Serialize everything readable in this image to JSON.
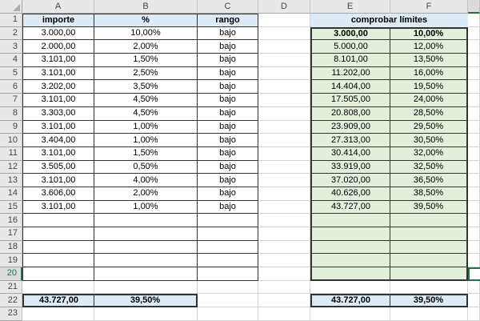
{
  "app": {
    "kind": "spreadsheet-grid"
  },
  "columns": [
    "A",
    "B",
    "C",
    "D",
    "E",
    "F"
  ],
  "row_count": 23,
  "selection": {
    "active_cell": "G20",
    "selected_row_header": "20"
  },
  "colors": {
    "header_fill_blue": "#ddebf7",
    "limits_fill_green": "#e2efda",
    "totals_fill_blue": "#ddebf7",
    "accent_green": "#217346",
    "table_border": "#333333",
    "gridline": "#d4d4d4"
  },
  "table_left": {
    "headers": [
      "importe",
      "%",
      "rango"
    ],
    "rows": [
      [
        "3.000,00",
        "10,00%",
        "bajo"
      ],
      [
        "2.000,00",
        "2,00%",
        "bajo"
      ],
      [
        "3.101,00",
        "1,50%",
        "bajo"
      ],
      [
        "3.101,00",
        "2,50%",
        "bajo"
      ],
      [
        "3.202,00",
        "3,50%",
        "bajo"
      ],
      [
        "3.101,00",
        "4,50%",
        "bajo"
      ],
      [
        "3.303,00",
        "4,50%",
        "bajo"
      ],
      [
        "3.101,00",
        "1,00%",
        "bajo"
      ],
      [
        "3.404,00",
        "1,00%",
        "bajo"
      ],
      [
        "3.101,00",
        "1,50%",
        "bajo"
      ],
      [
        "3.505,00",
        "0,50%",
        "bajo"
      ],
      [
        "3.101,00",
        "4,00%",
        "bajo"
      ],
      [
        "3.606,00",
        "2,00%",
        "bajo"
      ],
      [
        "3.101,00",
        "1,00%",
        "bajo"
      ],
      [
        "",
        "",
        ""
      ],
      [
        "",
        "",
        ""
      ],
      [
        "",
        "",
        ""
      ],
      [
        "",
        "",
        ""
      ],
      [
        "",
        "",
        ""
      ]
    ]
  },
  "table_right": {
    "title": "comprobar límites",
    "rows": [
      [
        "3.000,00",
        "10,00%"
      ],
      [
        "5.000,00",
        "12,00%"
      ],
      [
        "8.101,00",
        "13,50%"
      ],
      [
        "11.202,00",
        "16,00%"
      ],
      [
        "14.404,00",
        "19,50%"
      ],
      [
        "17.505,00",
        "24,00%"
      ],
      [
        "20.808,00",
        "28,50%"
      ],
      [
        "23.909,00",
        "29,50%"
      ],
      [
        "27.313,00",
        "30,50%"
      ],
      [
        "30.414,00",
        "32,00%"
      ],
      [
        "33.919,00",
        "32,50%"
      ],
      [
        "37.020,00",
        "36,50%"
      ],
      [
        "40.626,00",
        "38,50%"
      ],
      [
        "43.727,00",
        "39,50%"
      ],
      [
        "",
        ""
      ],
      [
        "",
        ""
      ],
      [
        "",
        ""
      ],
      [
        "",
        ""
      ],
      [
        "",
        ""
      ]
    ],
    "first_row_bold": true
  },
  "totals": {
    "left": [
      "43.727,00",
      "39,50%"
    ],
    "right": [
      "43.727,00",
      "39,50%"
    ]
  }
}
